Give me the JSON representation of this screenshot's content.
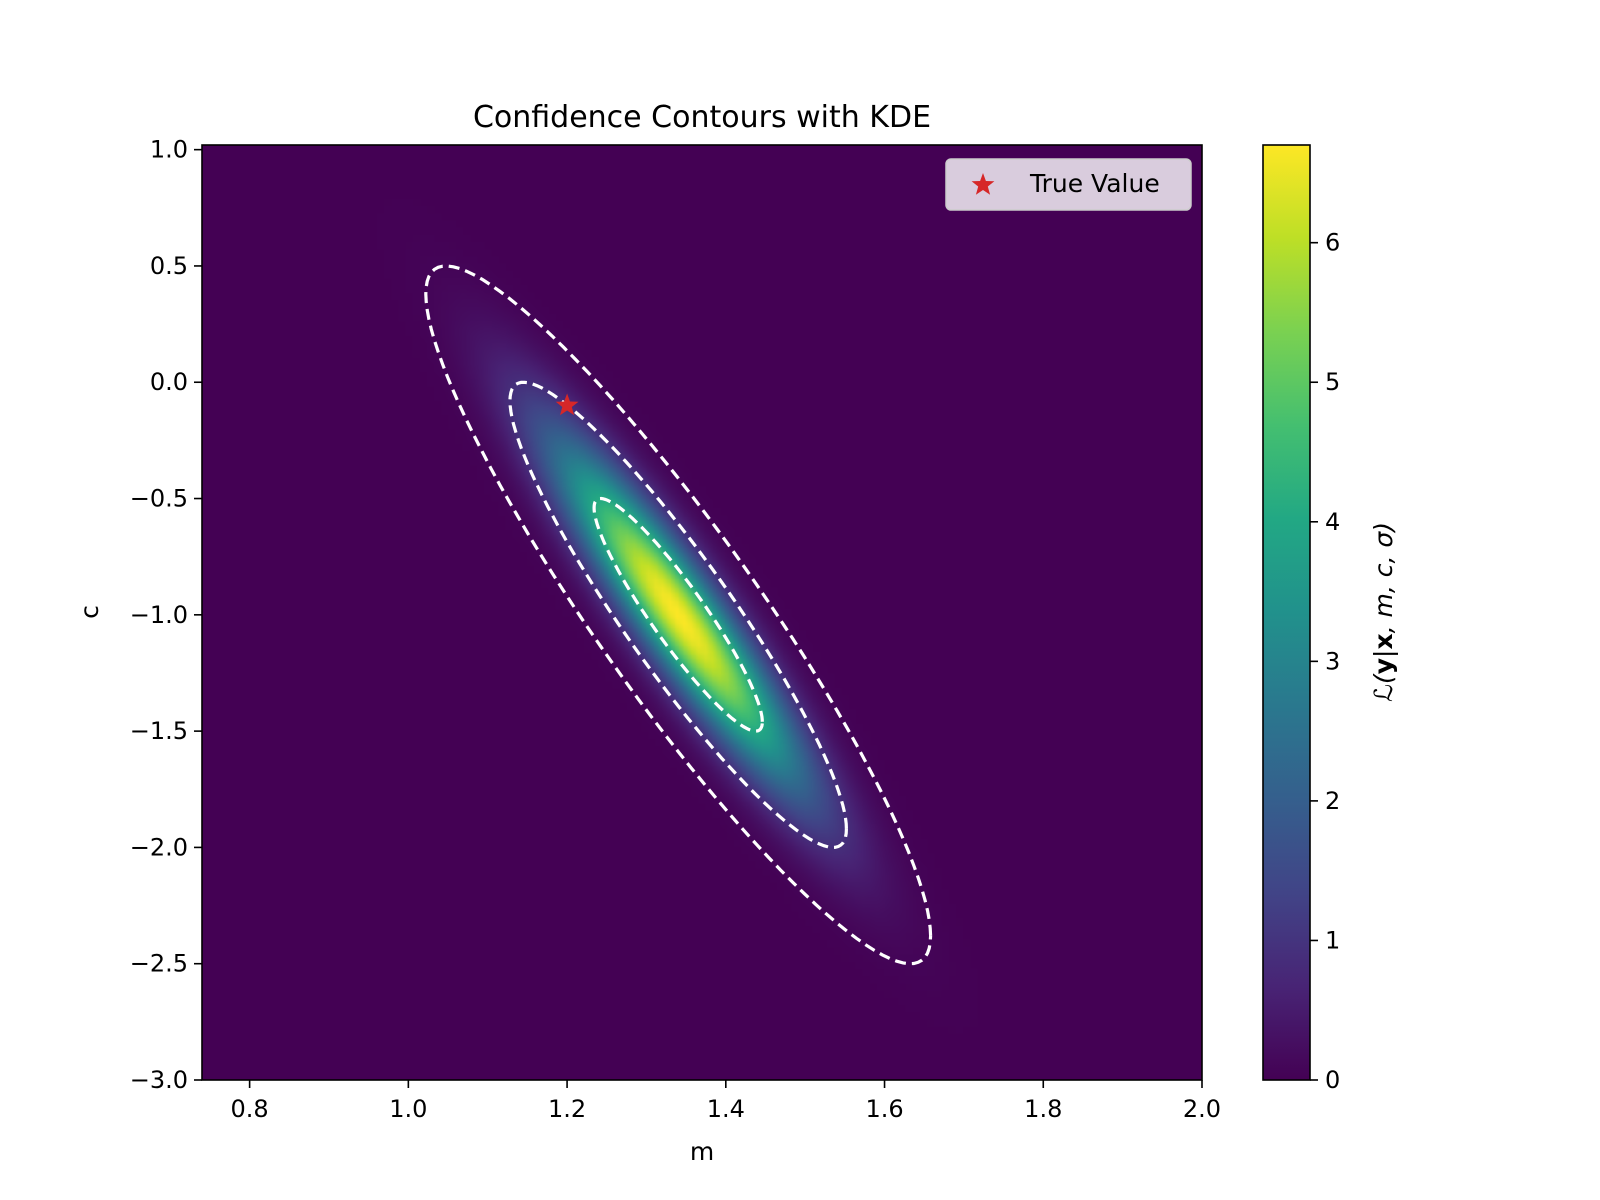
{
  "chart_data": {
    "type": "heatmap",
    "title": "Confidence Contours with KDE",
    "xlabel": "m",
    "ylabel": "c",
    "xlim": [
      0.74,
      2.0
    ],
    "ylim": [
      -3.0,
      1.02
    ],
    "xticks": [
      0.8,
      1.0,
      1.2,
      1.4,
      1.6,
      1.8,
      2.0
    ],
    "xtick_labels": [
      "0.8",
      "1.0",
      "1.2",
      "1.4",
      "1.6",
      "1.8",
      "2.0"
    ],
    "yticks": [
      1.0,
      0.5,
      0.0,
      -0.5,
      -1.0,
      -1.5,
      -2.0,
      -2.5,
      -3.0
    ],
    "ytick_labels": [
      "1.0",
      "0.5",
      "0.0",
      "−0.5",
      "−1.0",
      "−1.5",
      "−2.0",
      "−2.5",
      "−3.0"
    ],
    "density": {
      "peak_m": 1.34,
      "peak_c": -1.0,
      "sigma_m": 0.106,
      "sigma_c": 0.5,
      "correlation": -0.92,
      "max_value": 6.7
    },
    "contours": [
      {
        "level": "1-sigma",
        "style": "dashed",
        "color": "#ffffff"
      },
      {
        "level": "2-sigma",
        "style": "dashed",
        "color": "#ffffff"
      },
      {
        "level": "3-sigma",
        "style": "dashed",
        "color": "#ffffff"
      }
    ],
    "true_value": {
      "m": 1.2,
      "c": -0.1,
      "color": "#d62728",
      "marker": "star"
    },
    "legend": {
      "entries": [
        "True Value"
      ],
      "location": "upper right"
    },
    "colorbar": {
      "label": "ℒ(y|x, m, c, σ)",
      "label_parts": {
        "script_l": "ℒ",
        "y": "y",
        "x": "x",
        "rest": "m, c, σ"
      },
      "colormap": "viridis",
      "range": [
        0,
        6.7
      ],
      "ticks": [
        0,
        1,
        2,
        3,
        4,
        5,
        6
      ],
      "tick_labels": [
        "0",
        "1",
        "2",
        "3",
        "4",
        "5",
        "6"
      ]
    }
  }
}
